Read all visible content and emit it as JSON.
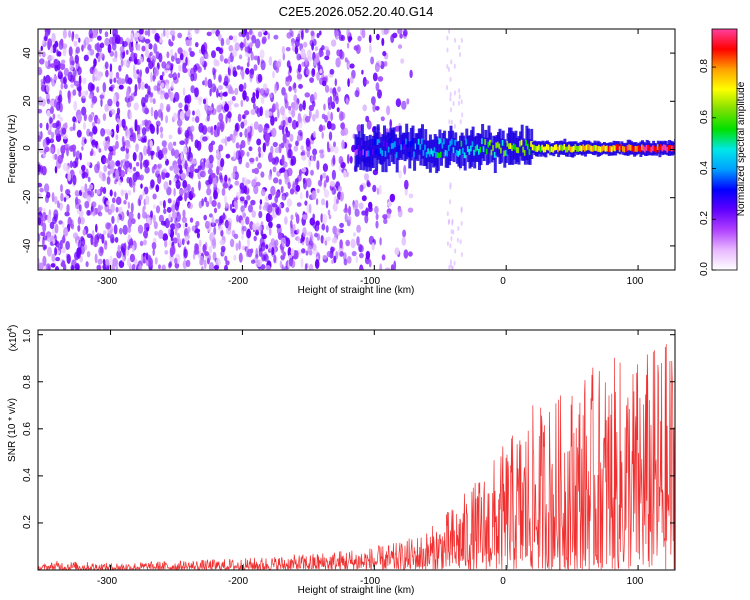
{
  "title": "C2E5.2026.052.20.40.G14",
  "chart_data": [
    {
      "type": "heatmap",
      "xlabel": "Height of straight line (km)",
      "ylabel": "Frequency (Hz)",
      "xlim": [
        -355,
        128
      ],
      "ylim": [
        -50,
        50
      ],
      "xticks": [
        -300,
        -200,
        -100,
        0,
        100
      ],
      "xtick_labels": [
        "-300",
        "-200",
        "-100",
        "0",
        "100"
      ],
      "yticks": [
        -40,
        -20,
        0,
        20,
        40
      ],
      "ytick_labels": [
        "-40",
        "-20",
        "0",
        "20",
        "40"
      ],
      "noise_region_x": [
        -355,
        -95
      ],
      "signal_track": {
        "x_start": -115,
        "x_end": 128,
        "frequency_hz": 0.5,
        "start_amplitude": 0.25,
        "end_amplitude": 0.95
      },
      "colorbar": {
        "label": "Normalized spectral amplitude",
        "range": [
          0,
          0.95
        ],
        "ticks": [
          0.0,
          0.2,
          0.4,
          0.6,
          0.8
        ],
        "tick_labels": [
          "0.0",
          "0.2",
          "0.4",
          "0.6",
          "0.8"
        ],
        "colors": [
          "#ffffff",
          "#e8b8ff",
          "#b040ff",
          "#6000ff",
          "#0000ff",
          "#00a0ff",
          "#00e8e8",
          "#00e000",
          "#80e000",
          "#ffff00",
          "#ffa000",
          "#ff0000",
          "#ff40a0"
        ]
      }
    },
    {
      "type": "line",
      "xlabel": "Height of straight line (km)",
      "ylabel": "SNR (10 * v/v)",
      "scale_label": "(x10",
      "scale_exponent": "4",
      "scale_close": ")",
      "xlim": [
        -355,
        128
      ],
      "ylim": [
        0,
        1.02
      ],
      "xticks": [
        -300,
        -200,
        -100,
        0,
        100
      ],
      "xtick_labels": [
        "-300",
        "-200",
        "-100",
        "0",
        "100"
      ],
      "yticks": [
        0.2,
        0.4,
        0.6,
        0.8,
        1.0
      ],
      "ytick_labels": [
        "0.2",
        "0.4",
        "0.6",
        "0.8",
        "1.0"
      ],
      "series": [
        {
          "name": "SNR",
          "color": "#f03030",
          "envelope_x": [
            -355,
            -340,
            -300,
            -250,
            -200,
            -150,
            -120,
            -100,
            -80,
            -60,
            -50,
            -40,
            -20,
            0,
            20,
            40,
            60,
            80,
            100,
            115,
            128
          ],
          "envelope_y": [
            0.02,
            0.04,
            0.03,
            0.04,
            0.05,
            0.07,
            0.09,
            0.1,
            0.12,
            0.17,
            0.22,
            0.28,
            0.4,
            0.55,
            0.7,
            0.75,
            0.85,
            0.9,
            0.92,
            0.97,
            1.0
          ]
        }
      ]
    }
  ]
}
